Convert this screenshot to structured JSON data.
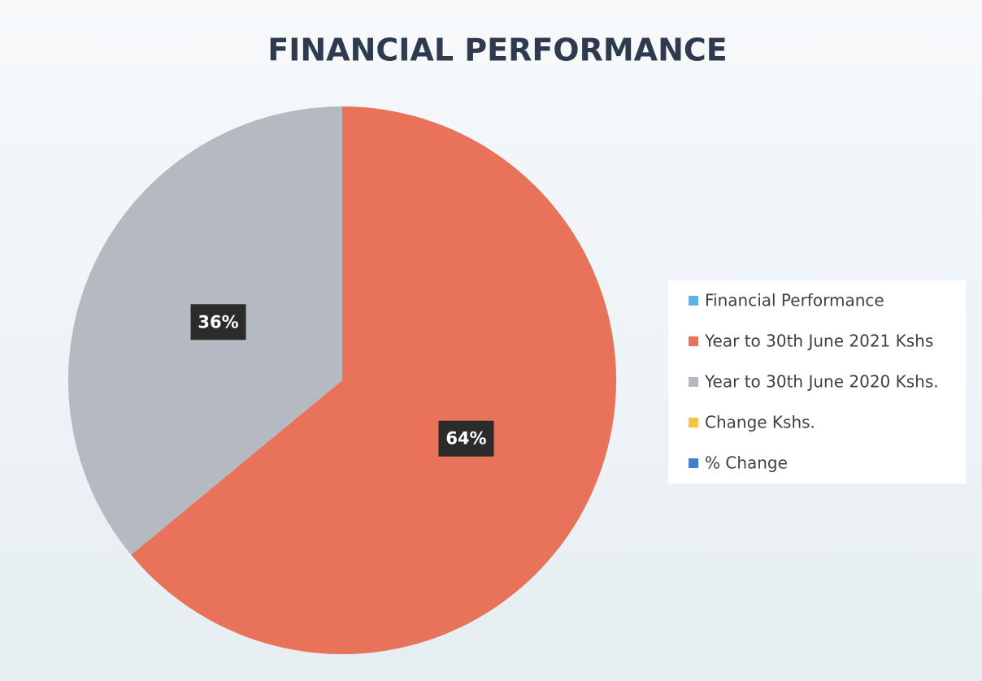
{
  "chart_data": {
    "type": "pie",
    "title": "FINANCIAL PERFORMANCE",
    "categories": [
      "Financial Performance",
      "Year to 30th June 2021 Kshs",
      "Year to 30th June 2020 Kshs.",
      "Change Kshs.",
      "% Change"
    ],
    "values": [
      0,
      64,
      36,
      0,
      0
    ],
    "value_labels": [
      null,
      "64%",
      "36%",
      null,
      null
    ],
    "colors": [
      "#5bb4e5",
      "#e8735a",
      "#b5b9c1",
      "#f2c744",
      "#3f7fcf"
    ],
    "legend": "right"
  }
}
